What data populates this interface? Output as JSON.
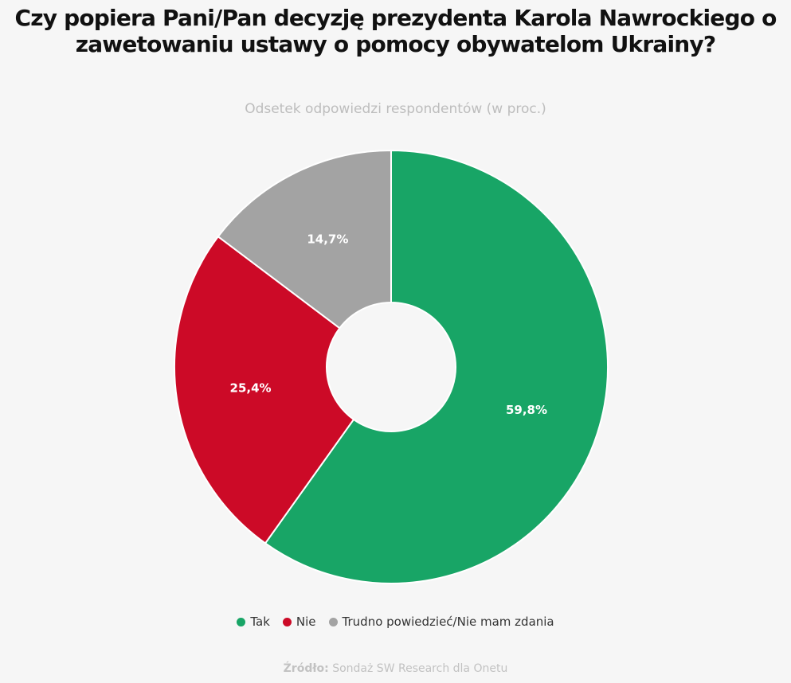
{
  "chart_data": {
    "type": "pie",
    "title": "Czy popiera Pani/Pan decyzję prezydenta Karola Nawrockiego o zawetowaniu ustawy o pomocy obywatelom Ukrainy?",
    "subtitle": "Odsetek odpowiedzi respondentów (w proc.)",
    "categories": [
      "Tak",
      "Nie",
      "Trudno powiedzieć/Nie mam zdania"
    ],
    "values": [
      59.8,
      25.4,
      14.7
    ],
    "value_labels": [
      "59,8%",
      "25,4%",
      "14,7%"
    ],
    "colors": [
      "#18a566",
      "#cc0a27",
      "#a3a3a3"
    ],
    "donut": true,
    "legend_position": "bottom"
  },
  "source": {
    "prefix": "Źródło:",
    "text": " Sondaż SW Research dla Onetu"
  }
}
